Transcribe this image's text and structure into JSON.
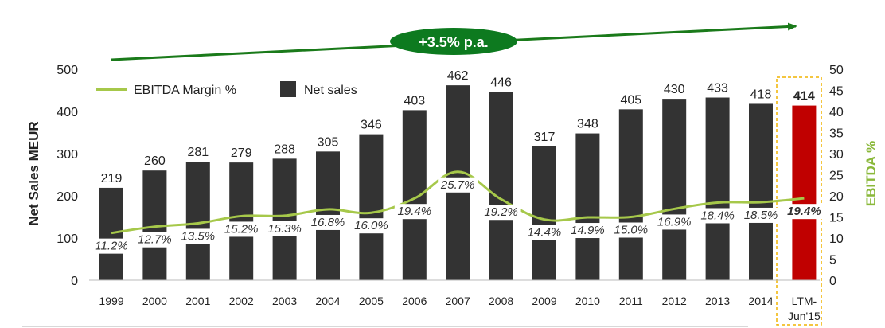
{
  "chart_data": {
    "type": "bar",
    "categories": [
      "1999",
      "2000",
      "2001",
      "2002",
      "2003",
      "2004",
      "2005",
      "2006",
      "2007",
      "2008",
      "2009",
      "2010",
      "2011",
      "2012",
      "2013",
      "2014",
      "LTM-Jun'15"
    ],
    "category_lines": [
      [
        "1999"
      ],
      [
        "2000"
      ],
      [
        "2001"
      ],
      [
        "2002"
      ],
      [
        "2003"
      ],
      [
        "2004"
      ],
      [
        "2005"
      ],
      [
        "2006"
      ],
      [
        "2007"
      ],
      [
        "2008"
      ],
      [
        "2009"
      ],
      [
        "2010"
      ],
      [
        "2011"
      ],
      [
        "2012"
      ],
      [
        "2013"
      ],
      [
        "2014"
      ],
      [
        "LTM-",
        "Jun'15"
      ]
    ],
    "series": [
      {
        "name": "Net sales",
        "axis": "left",
        "values": [
          219,
          260,
          281,
          279,
          288,
          305,
          346,
          403,
          462,
          446,
          317,
          348,
          405,
          430,
          433,
          418,
          414
        ],
        "labels": [
          "219",
          "260",
          "281",
          "279",
          "288",
          "305",
          "346",
          "403",
          "462",
          "446",
          "317",
          "348",
          "405",
          "430",
          "433",
          "418",
          "414"
        ]
      },
      {
        "name": "EBITDA Margin %",
        "axis": "right",
        "values": [
          11.2,
          12.7,
          13.5,
          15.2,
          15.3,
          16.8,
          16.0,
          19.4,
          25.7,
          19.2,
          14.4,
          14.9,
          15.0,
          16.9,
          18.4,
          18.5,
          19.4
        ],
        "labels": [
          "11.2%",
          "12.7%",
          "13.5%",
          "15.2%",
          "15.3%",
          "16.8%",
          "16.0%",
          "19.4%",
          "25.7%",
          "19.2%",
          "14.4%",
          "14.9%",
          "15.0%",
          "16.9%",
          "18.4%",
          "18.5%",
          "19.4%"
        ]
      }
    ],
    "ylabel": "Net Sales MEUR",
    "y2label": "EBITDA %",
    "ylim": [
      0,
      500
    ],
    "y2lim": [
      0,
      50
    ],
    "yticks": [
      "0",
      "100",
      "200",
      "300",
      "400",
      "500"
    ],
    "y2ticks": [
      "0",
      "5",
      "10",
      "15",
      "20",
      "25",
      "30",
      "35",
      "40",
      "45",
      "50"
    ],
    "annotation": "+3.5% p.a.",
    "highlight_category": "LTM-Jun'15",
    "legend_position": "top-left",
    "colors": {
      "bars": "#333333",
      "bar_highlight": "#c00000",
      "line": "#a6c84a",
      "arrow": "#1a7a1a",
      "badge": "#0d7a1f",
      "highlight_box": "#f0b400",
      "y2label": "#8ab83a"
    }
  }
}
